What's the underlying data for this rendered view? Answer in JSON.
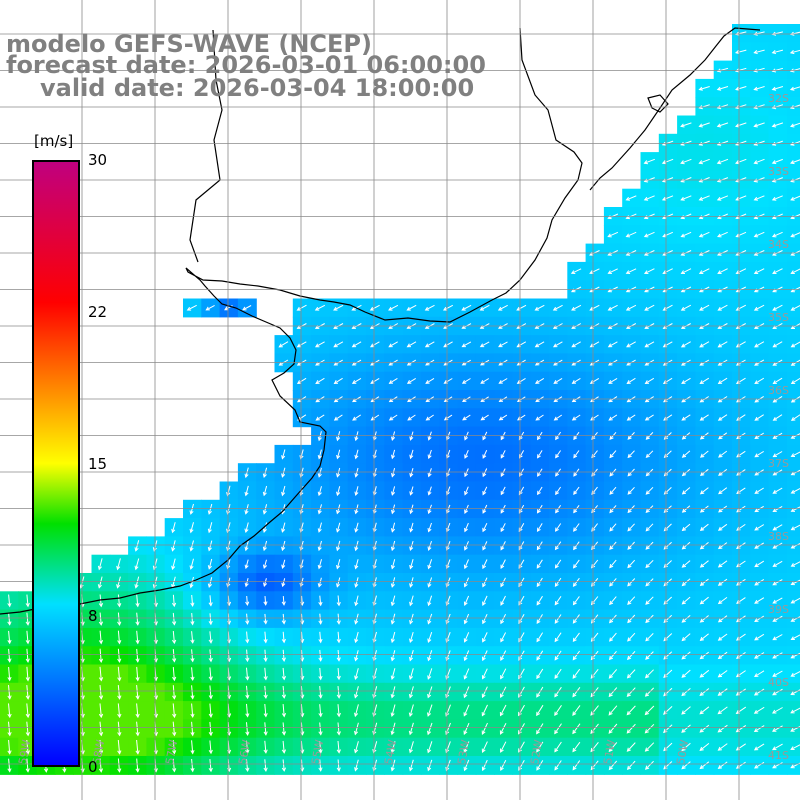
{
  "titles": {
    "line1": "modelo GEFS-WAVE (NCEP)",
    "line2": "forecast date: 2026-03-01 06:00:00",
    "line3": "valid date: 2026-03-04 18:00:00"
  },
  "colorbar": {
    "unit": "[m/s]",
    "ticks": [
      "30",
      "22",
      "15",
      "8",
      "0"
    ],
    "stops": [
      {
        "v": 0,
        "color": "#0000ff"
      },
      {
        "v": 8,
        "color": "#00e0ff"
      },
      {
        "v": 12,
        "color": "#00e000"
      },
      {
        "v": 15,
        "color": "#ffff00"
      },
      {
        "v": 19,
        "color": "#ff8000"
      },
      {
        "v": 23,
        "color": "#ff0000"
      },
      {
        "v": 30,
        "color": "#c0007f"
      }
    ],
    "min": 0,
    "max": 30
  },
  "map": {
    "lat_labels": [
      "32S",
      "33S",
      "34S",
      "35S",
      "36S",
      "37S",
      "38S",
      "39S",
      "40S",
      "41S"
    ],
    "lon_labels": [
      "59W",
      "58W",
      "57W",
      "56W",
      "55W",
      "54W",
      "53W",
      "52W",
      "51W",
      "50W"
    ],
    "wind_direction": "from northeast / northwest, toward south-southwest",
    "field_summary": "wind speed 3-12 m/s; weakest (blue) in central estuary-shelf band, strongest (green) in southwest corner"
  }
}
